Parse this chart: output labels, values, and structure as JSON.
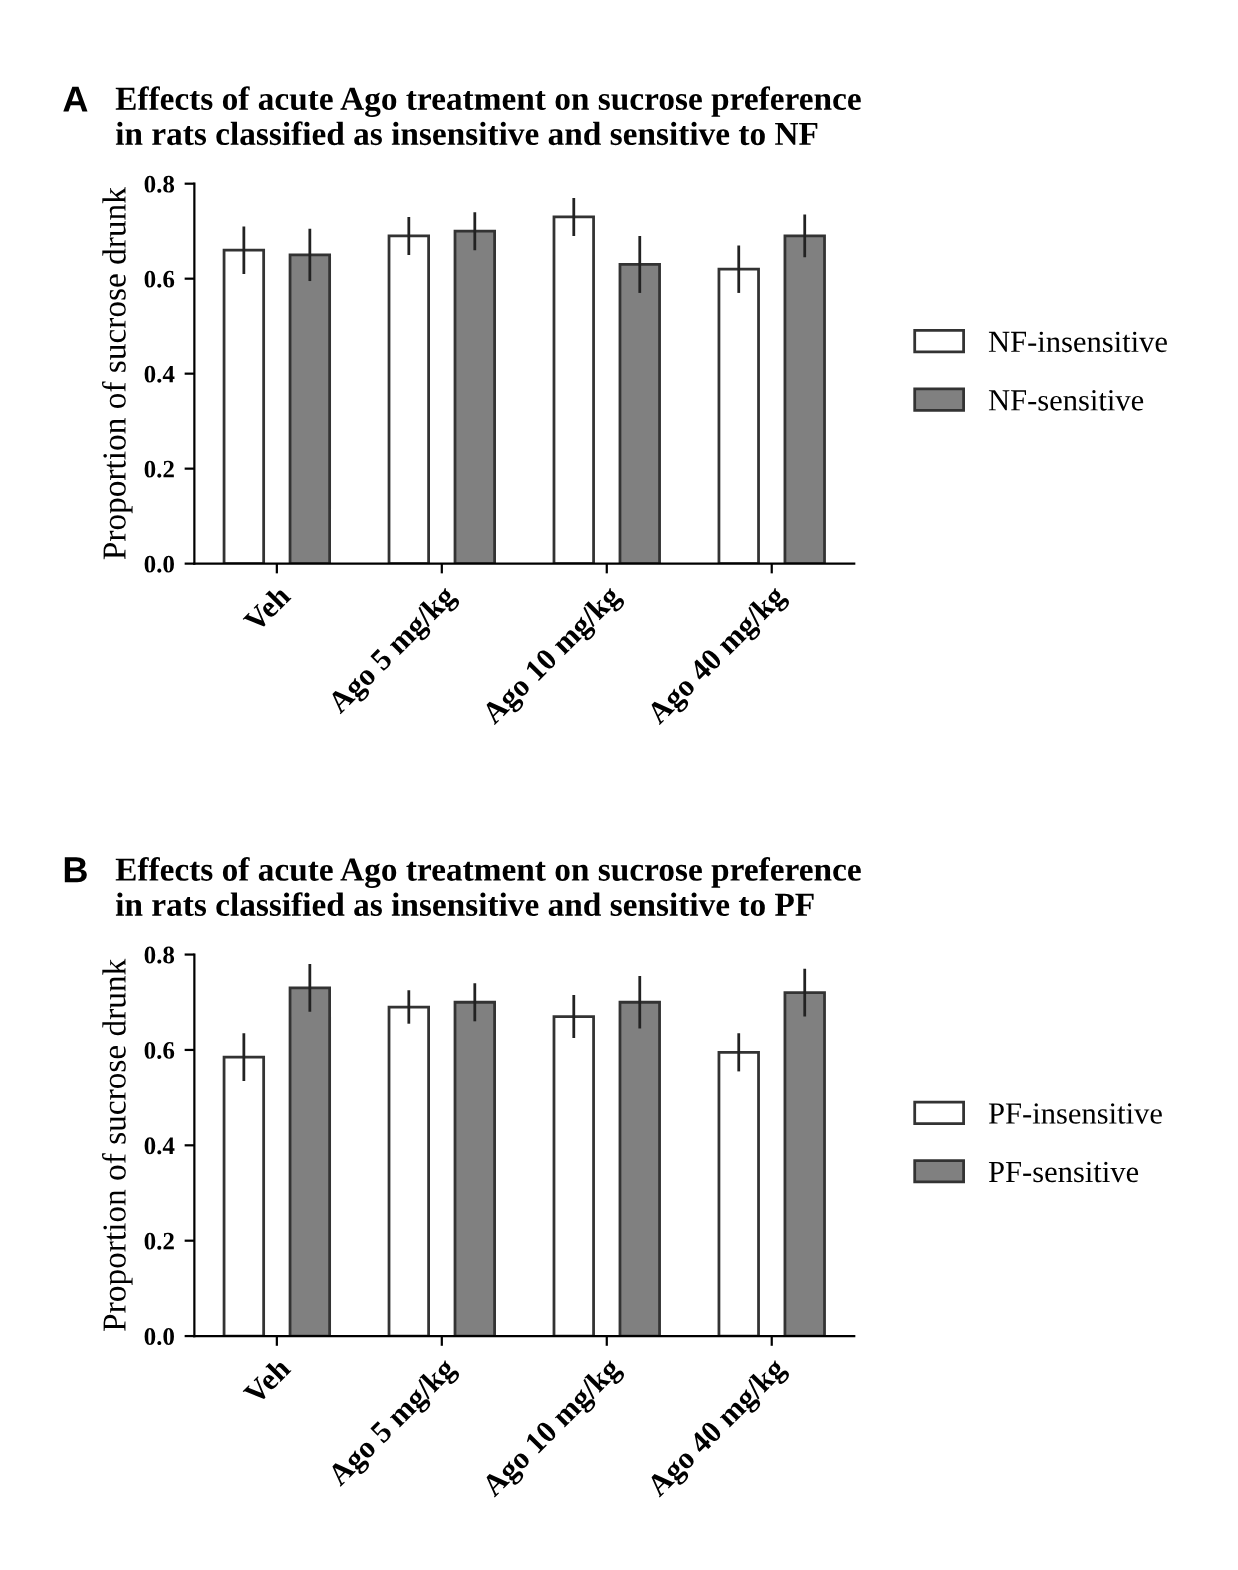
{
  "chart_data": [
    {
      "type": "bar",
      "title": "Effects of acute Ago treatment on sucrose preference\nin rats classified as insensitive and sensitive to NF",
      "ylabel": "Proportion of sucrose drunk",
      "annotations": [
        "A"
      ],
      "categories": [
        "Veh",
        "Ago 5 mg/kg",
        "Ago 10 mg/kg",
        "Ago 40 mg/kg"
      ],
      "series": [
        {
          "name": "NF-insensitive",
          "color": "#ffffff",
          "values": [
            0.66,
            0.69,
            0.73,
            0.62
          ],
          "errors": [
            0.05,
            0.04,
            0.04,
            0.05
          ]
        },
        {
          "name": "NF-sensitive",
          "color": "#808080",
          "values": [
            0.65,
            0.7,
            0.63,
            0.69
          ],
          "errors": [
            0.055,
            0.04,
            0.06,
            0.045
          ]
        }
      ],
      "ylim": [
        0,
        0.8
      ],
      "yticks": [
        {
          "value": 0,
          "label": "0.0"
        },
        0.2,
        0.4,
        0.6,
        0.8
      ],
      "legend": "right",
      "grid": false
    },
    {
      "type": "bar",
      "title": "Effects of acute Ago treatment on sucrose preference\nin rats classified as insensitive and sensitive to PF",
      "ylabel": "Proportion of sucrose drunk",
      "annotations": [
        "B"
      ],
      "categories": [
        "Veh",
        "Ago 5 mg/kg",
        "Ago 10 mg/kg",
        "Ago 40 mg/kg"
      ],
      "series": [
        {
          "name": "PF-insensitive",
          "color": "#ffffff",
          "values": [
            0.585,
            0.69,
            0.67,
            0.595
          ],
          "errors": [
            0.05,
            0.035,
            0.045,
            0.04
          ]
        },
        {
          "name": "PF-sensitive",
          "color": "#808080",
          "values": [
            0.73,
            0.7,
            0.7,
            0.72
          ],
          "errors": [
            0.05,
            0.04,
            0.055,
            0.05
          ]
        }
      ],
      "ylim": [
        0,
        0.8
      ],
      "yticks": [
        {
          "value": 0,
          "label": "0.0"
        },
        0.2,
        0.4,
        0.6,
        0.8
      ],
      "legend": "right",
      "grid": false
    }
  ]
}
